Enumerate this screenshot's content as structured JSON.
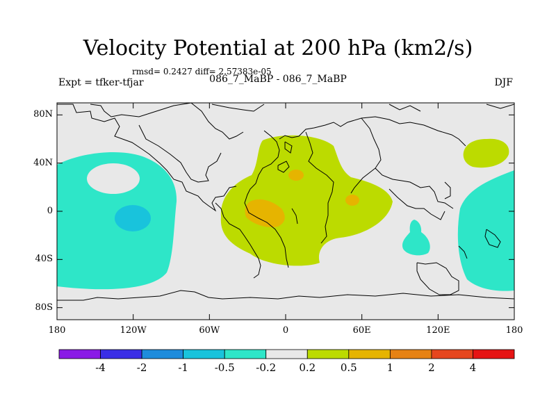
{
  "map": {
    "title": "Velocity Potential at 200 hPa (km2/s)",
    "stats": "rmsd= 0.2427 diff= 2.57383e-05",
    "experiment": "Expt = tfker-tfjar",
    "subtitle": "086_7_MaBP - 086_7_MaBP",
    "season": "DJF",
    "background_color": "#e8e8e8",
    "lat_range": [
      -90,
      90
    ],
    "lon_range": [
      -180,
      180
    ],
    "y_ticks": [
      "80N",
      "40N",
      "0",
      "40S",
      "80S"
    ],
    "y_tick_values": [
      80,
      40,
      0,
      -40,
      -80
    ],
    "x_ticks": [
      "180",
      "120W",
      "60W",
      "0",
      "60E",
      "120E",
      "180"
    ],
    "x_tick_values": [
      -180,
      -120,
      -60,
      0,
      60,
      120,
      180
    ],
    "continent_outlines": "coastline-outlines"
  },
  "colorbar": {
    "colors": [
      "#8a1ae6",
      "#3a2ee6",
      "#1e8cdc",
      "#19c3dc",
      "#2ee6c8",
      "#e8e8e8",
      "#bcdb00",
      "#e6b400",
      "#e68214",
      "#e6461e",
      "#e61414"
    ],
    "labels": [
      "-4",
      "-2",
      "-1",
      "-0.5",
      "-0.2",
      "0.2",
      "0.5",
      "1",
      "2",
      "4"
    ]
  }
}
